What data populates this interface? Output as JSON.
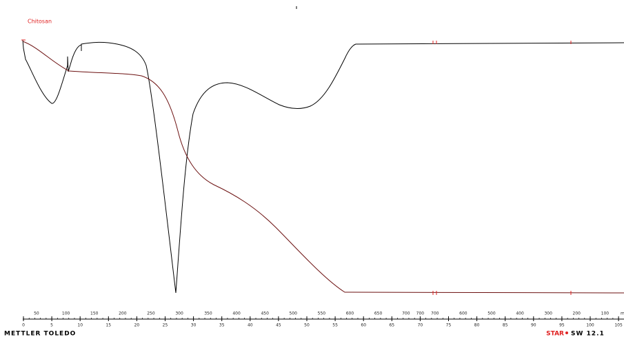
{
  "chart_data": {
    "type": "line",
    "title": "Chitosan",
    "x_label": "min",
    "xlim": [
      0,
      105
    ],
    "xticks": [
      0,
      5,
      10,
      15,
      20,
      25,
      30,
      35,
      40,
      45,
      50,
      55,
      60,
      65,
      70,
      75,
      80,
      85,
      90,
      95,
      100,
      105
    ],
    "x2ticks": [
      {
        "value": 2.3,
        "label": "50"
      },
      {
        "value": 7.5,
        "label": "100"
      },
      {
        "value": 12.5,
        "label": "150"
      },
      {
        "value": 17.5,
        "label": "200"
      },
      {
        "value": 22.5,
        "label": "250"
      },
      {
        "value": 27.5,
        "label": "300"
      },
      {
        "value": 32.6,
        "label": "350"
      },
      {
        "value": 37.6,
        "label": "400"
      },
      {
        "value": 42.6,
        "label": "450"
      },
      {
        "value": 47.6,
        "label": "500"
      },
      {
        "value": 52.6,
        "label": "550"
      },
      {
        "value": 57.6,
        "label": "600"
      },
      {
        "value": 62.6,
        "label": "650"
      },
      {
        "value": 67.5,
        "label": "700"
      },
      {
        "value": 70,
        "label": "700"
      },
      {
        "value": 72.6,
        "label": "700"
      },
      {
        "value": 77.6,
        "label": "600"
      },
      {
        "value": 82.6,
        "label": "500"
      },
      {
        "value": 87.6,
        "label": "400"
      },
      {
        "value": 92.6,
        "label": "300"
      },
      {
        "value": 97.6,
        "label": "200"
      },
      {
        "value": 102.6,
        "label": "100"
      }
    ],
    "footer_left": "METTLER TOLEDO",
    "footer_right_brand": "STAR",
    "footer_right_version": "SW 12.1"
  }
}
